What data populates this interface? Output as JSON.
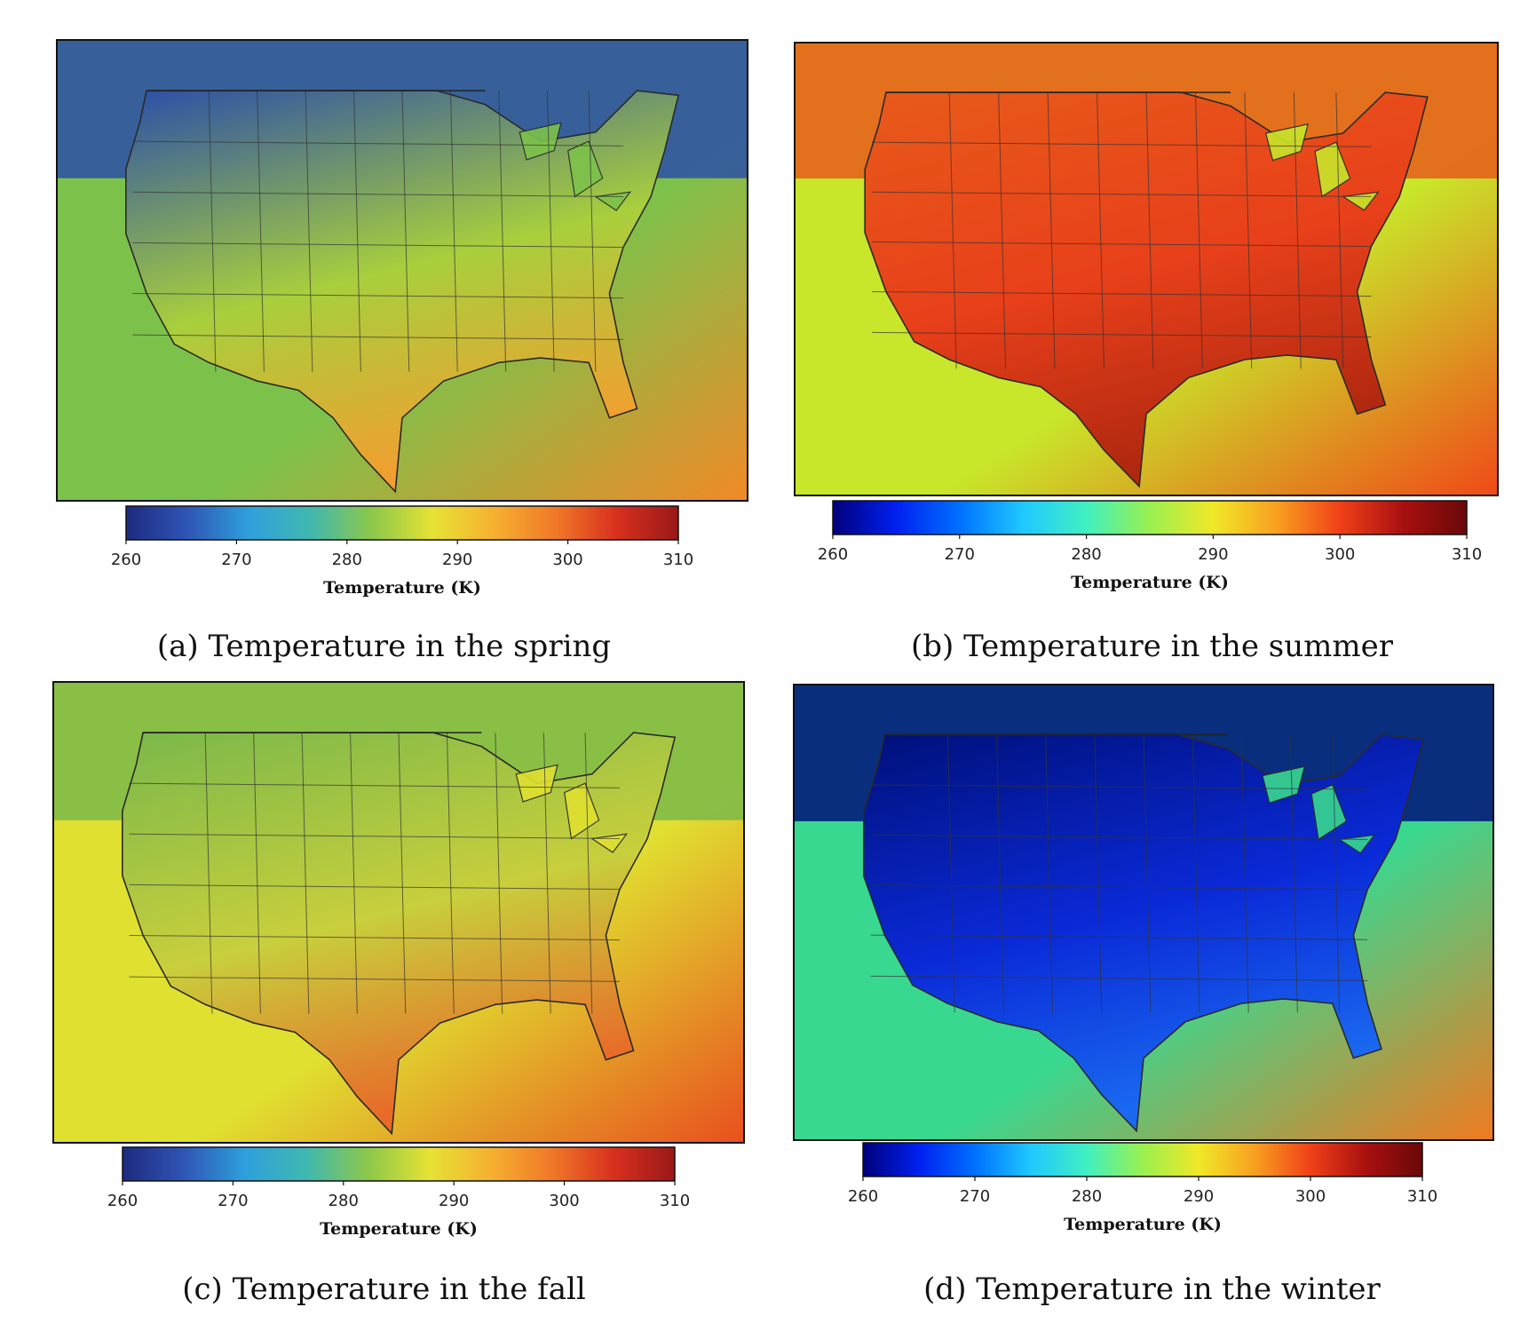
{
  "colorbar": {
    "title": "Temperature (K)",
    "ticks": [
      "260",
      "270",
      "280",
      "290",
      "300",
      "310"
    ]
  },
  "panels": [
    {
      "id": "a",
      "caption": "(a) Temperature in the spring",
      "colormap": "parula-jet",
      "colors": {
        "background": "#7cc24a",
        "north": "#2b4fa8",
        "land": "#a8cf3c",
        "south": "#f0a030",
        "ocean_east": "#f08a28"
      }
    },
    {
      "id": "b",
      "caption": "(b) Temperature in the summer",
      "colormap": "jet",
      "colors": {
        "background": "#c8e62a",
        "north": "#e85a1a",
        "land": "#e8401a",
        "south": "#b02810",
        "ocean_east": "#f04a18"
      }
    },
    {
      "id": "c",
      "caption": "(c) Temperature in the fall",
      "colormap": "parula-jet",
      "colors": {
        "background": "#e0e030",
        "north": "#7ab84a",
        "land": "#c8cf3c",
        "south": "#e86a28",
        "ocean_east": "#e8501e"
      }
    },
    {
      "id": "d",
      "caption": "(d) Temperature in the winter",
      "colormap": "jet",
      "colors": {
        "background": "#38d890",
        "north": "#00107a",
        "land": "#0a2ad8",
        "south": "#1a6af0",
        "ocean_east": "#f07a20"
      }
    }
  ]
}
